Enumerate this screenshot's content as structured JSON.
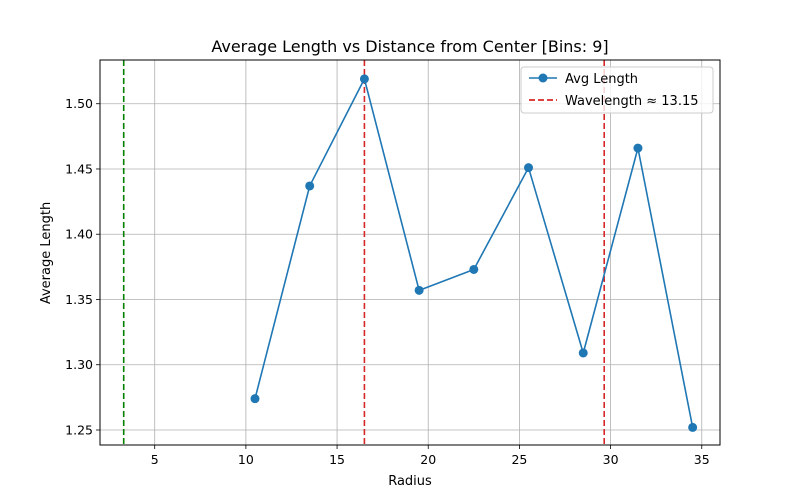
{
  "chart_data": {
    "type": "line",
    "title": "Average Length vs Distance from Center [Bins: 9]",
    "xlabel": "Radius",
    "ylabel": "Average Length",
    "xlim": [
      2.0,
      36.0
    ],
    "ylim": [
      1.2385,
      1.5335
    ],
    "x_ticks": [
      5,
      10,
      15,
      20,
      25,
      30,
      35
    ],
    "y_ticks": [
      1.25,
      1.3,
      1.35,
      1.4,
      1.45,
      1.5
    ],
    "x_tick_labels": [
      "5",
      "10",
      "15",
      "20",
      "25",
      "30",
      "35"
    ],
    "y_tick_labels": [
      "1.25",
      "1.30",
      "1.35",
      "1.40",
      "1.45",
      "1.50"
    ],
    "grid": true,
    "legend_position": "top-right",
    "series": [
      {
        "name": "Avg Length",
        "color": "#1f77b4",
        "marker": "circle",
        "x": [
          10.5,
          13.5,
          16.5,
          19.5,
          22.5,
          25.5,
          28.5,
          31.5,
          34.5
        ],
        "y": [
          1.274,
          1.437,
          1.519,
          1.357,
          1.373,
          1.451,
          1.309,
          1.466,
          1.252
        ]
      }
    ],
    "vlines": [
      {
        "x": 3.3,
        "color": "#008000",
        "style": "dashed",
        "label": ""
      },
      {
        "x": 16.5,
        "color": "#d62728",
        "style": "dashed",
        "label": "Wavelength ≈ 13.15"
      },
      {
        "x": 29.65,
        "color": "#d62728",
        "style": "dashed",
        "label": ""
      }
    ],
    "legend": [
      {
        "label": "Avg Length",
        "kind": "line-marker",
        "color": "#1f77b4"
      },
      {
        "label": "Wavelength ≈ 13.15",
        "kind": "dashed",
        "color": "#d62728"
      }
    ]
  }
}
